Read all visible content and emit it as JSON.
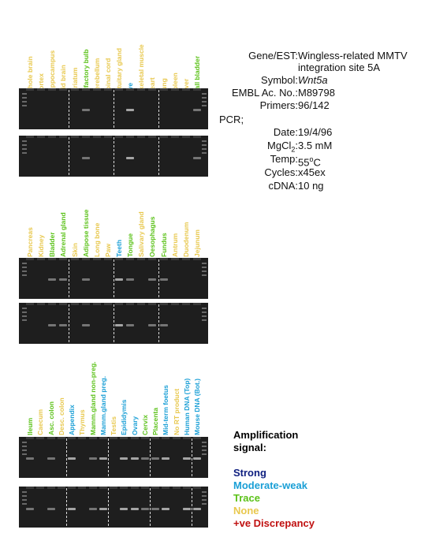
{
  "colors": {
    "strong": "#102080",
    "moderate": "#1a9fd6",
    "trace": "#5cc21a",
    "none": "#e8c84e",
    "discrepancy": "#c01010"
  },
  "panels": [
    {
      "lanes": [
        {
          "label": "Whole brain",
          "level": "none"
        },
        {
          "label": "Cortex",
          "level": "none"
        },
        {
          "label": "Hippocampus",
          "level": "none"
        },
        {
          "label": "Mid brain",
          "level": "none"
        },
        {
          "label": "Striatum",
          "level": "none"
        },
        {
          "label": "Olfactory bulb",
          "level": "trace"
        },
        {
          "label": "Cerebellum",
          "level": "none"
        },
        {
          "label": "Spinal cord",
          "level": "none"
        },
        {
          "label": "Pituitary gland",
          "level": "none"
        },
        {
          "label": "Eye",
          "level": "moderate"
        },
        {
          "label": "Skeletal muscle",
          "level": "none"
        },
        {
          "label": "Heart",
          "level": "none"
        },
        {
          "label": "Lung",
          "level": "none"
        },
        {
          "label": "Spleen",
          "level": "none"
        },
        {
          "label": "Liver",
          "level": "none"
        },
        {
          "label": "Gall bladder",
          "level": "trace"
        }
      ]
    },
    {
      "lanes": [
        {
          "label": "Pancreas",
          "level": "none"
        },
        {
          "label": "Kidney",
          "level": "none"
        },
        {
          "label": "Bladder",
          "level": "trace"
        },
        {
          "label": "Adrenal gland",
          "level": "trace"
        },
        {
          "label": "Skin",
          "level": "none"
        },
        {
          "label": "Adipose tissue",
          "level": "trace"
        },
        {
          "label": "Long bone",
          "level": "none"
        },
        {
          "label": "Paw",
          "level": "none"
        },
        {
          "label": "Teeth",
          "level": "moderate"
        },
        {
          "label": "Tongue",
          "level": "trace"
        },
        {
          "label": "Salivary gland",
          "level": "none"
        },
        {
          "label": "Oesophagus",
          "level": "trace"
        },
        {
          "label": "Fundus",
          "level": "trace"
        },
        {
          "label": "Antrum",
          "level": "none"
        },
        {
          "label": "Duodenum",
          "level": "none"
        },
        {
          "label": "Jejunum",
          "level": "none"
        }
      ]
    },
    {
      "lanes": [
        {
          "label": "Ileum",
          "level": "trace"
        },
        {
          "label": "Caecum",
          "level": "none"
        },
        {
          "label": "Asc. colon",
          "level": "trace"
        },
        {
          "label": "Desc. colon",
          "level": "none"
        },
        {
          "label": "Appendix",
          "level": "moderate"
        },
        {
          "label": "Thymus",
          "level": "none"
        },
        {
          "label": "Mamm.gland non-preg.",
          "level": "trace"
        },
        {
          "label": "Mamm.gland preg.",
          "level": "moderate"
        },
        {
          "label": "Testis",
          "level": "none"
        },
        {
          "label": "Epididymis",
          "level": "moderate"
        },
        {
          "label": "Ovary",
          "level": "moderate"
        },
        {
          "label": "Cervix",
          "level": "trace"
        },
        {
          "label": "Placenta",
          "level": "trace"
        },
        {
          "label": "Mid-term foetus",
          "level": "moderate"
        },
        {
          "label": "No RT product",
          "level": "none"
        },
        {
          "label": "Human DNA (Top)",
          "level": "moderate"
        },
        {
          "label": "Mouse DNA (Bot.)",
          "level": "moderate"
        }
      ]
    }
  ],
  "info": {
    "gene_key": "Gene/EST:",
    "gene_value_1": "Wingless-related MMTV",
    "gene_value_2": "integration site 5A",
    "symbol_key": "Symbol:",
    "symbol_value": "Wnt5a",
    "embl_key": "EMBL Ac. No.:",
    "embl_value": "M89798",
    "primers_key": "Primers:",
    "primers_value": "96/142",
    "pcr_label": "PCR;",
    "date_key": "Date:",
    "date_value": "19/4/96",
    "mgcl_key_pre": "MgCl",
    "mgcl_key_sub": "2",
    "mgcl_key_post": ":",
    "mgcl_value": "3.5 mM",
    "temp_key": "Temp:",
    "temp_value_pre": "55",
    "temp_value_sup": "o",
    "temp_value_post": "C",
    "cycles_key": "Cycles:",
    "cycles_value": "x45ex",
    "cdna_key": "cDNA:",
    "cdna_value": "10 ng"
  },
  "legend": {
    "title_1": "Amplification",
    "title_2": "signal:",
    "strong": "Strong",
    "moderate": "Moderate-weak",
    "trace": "Trace",
    "none": "None",
    "discrepancy": "+ve Discrepancy"
  }
}
